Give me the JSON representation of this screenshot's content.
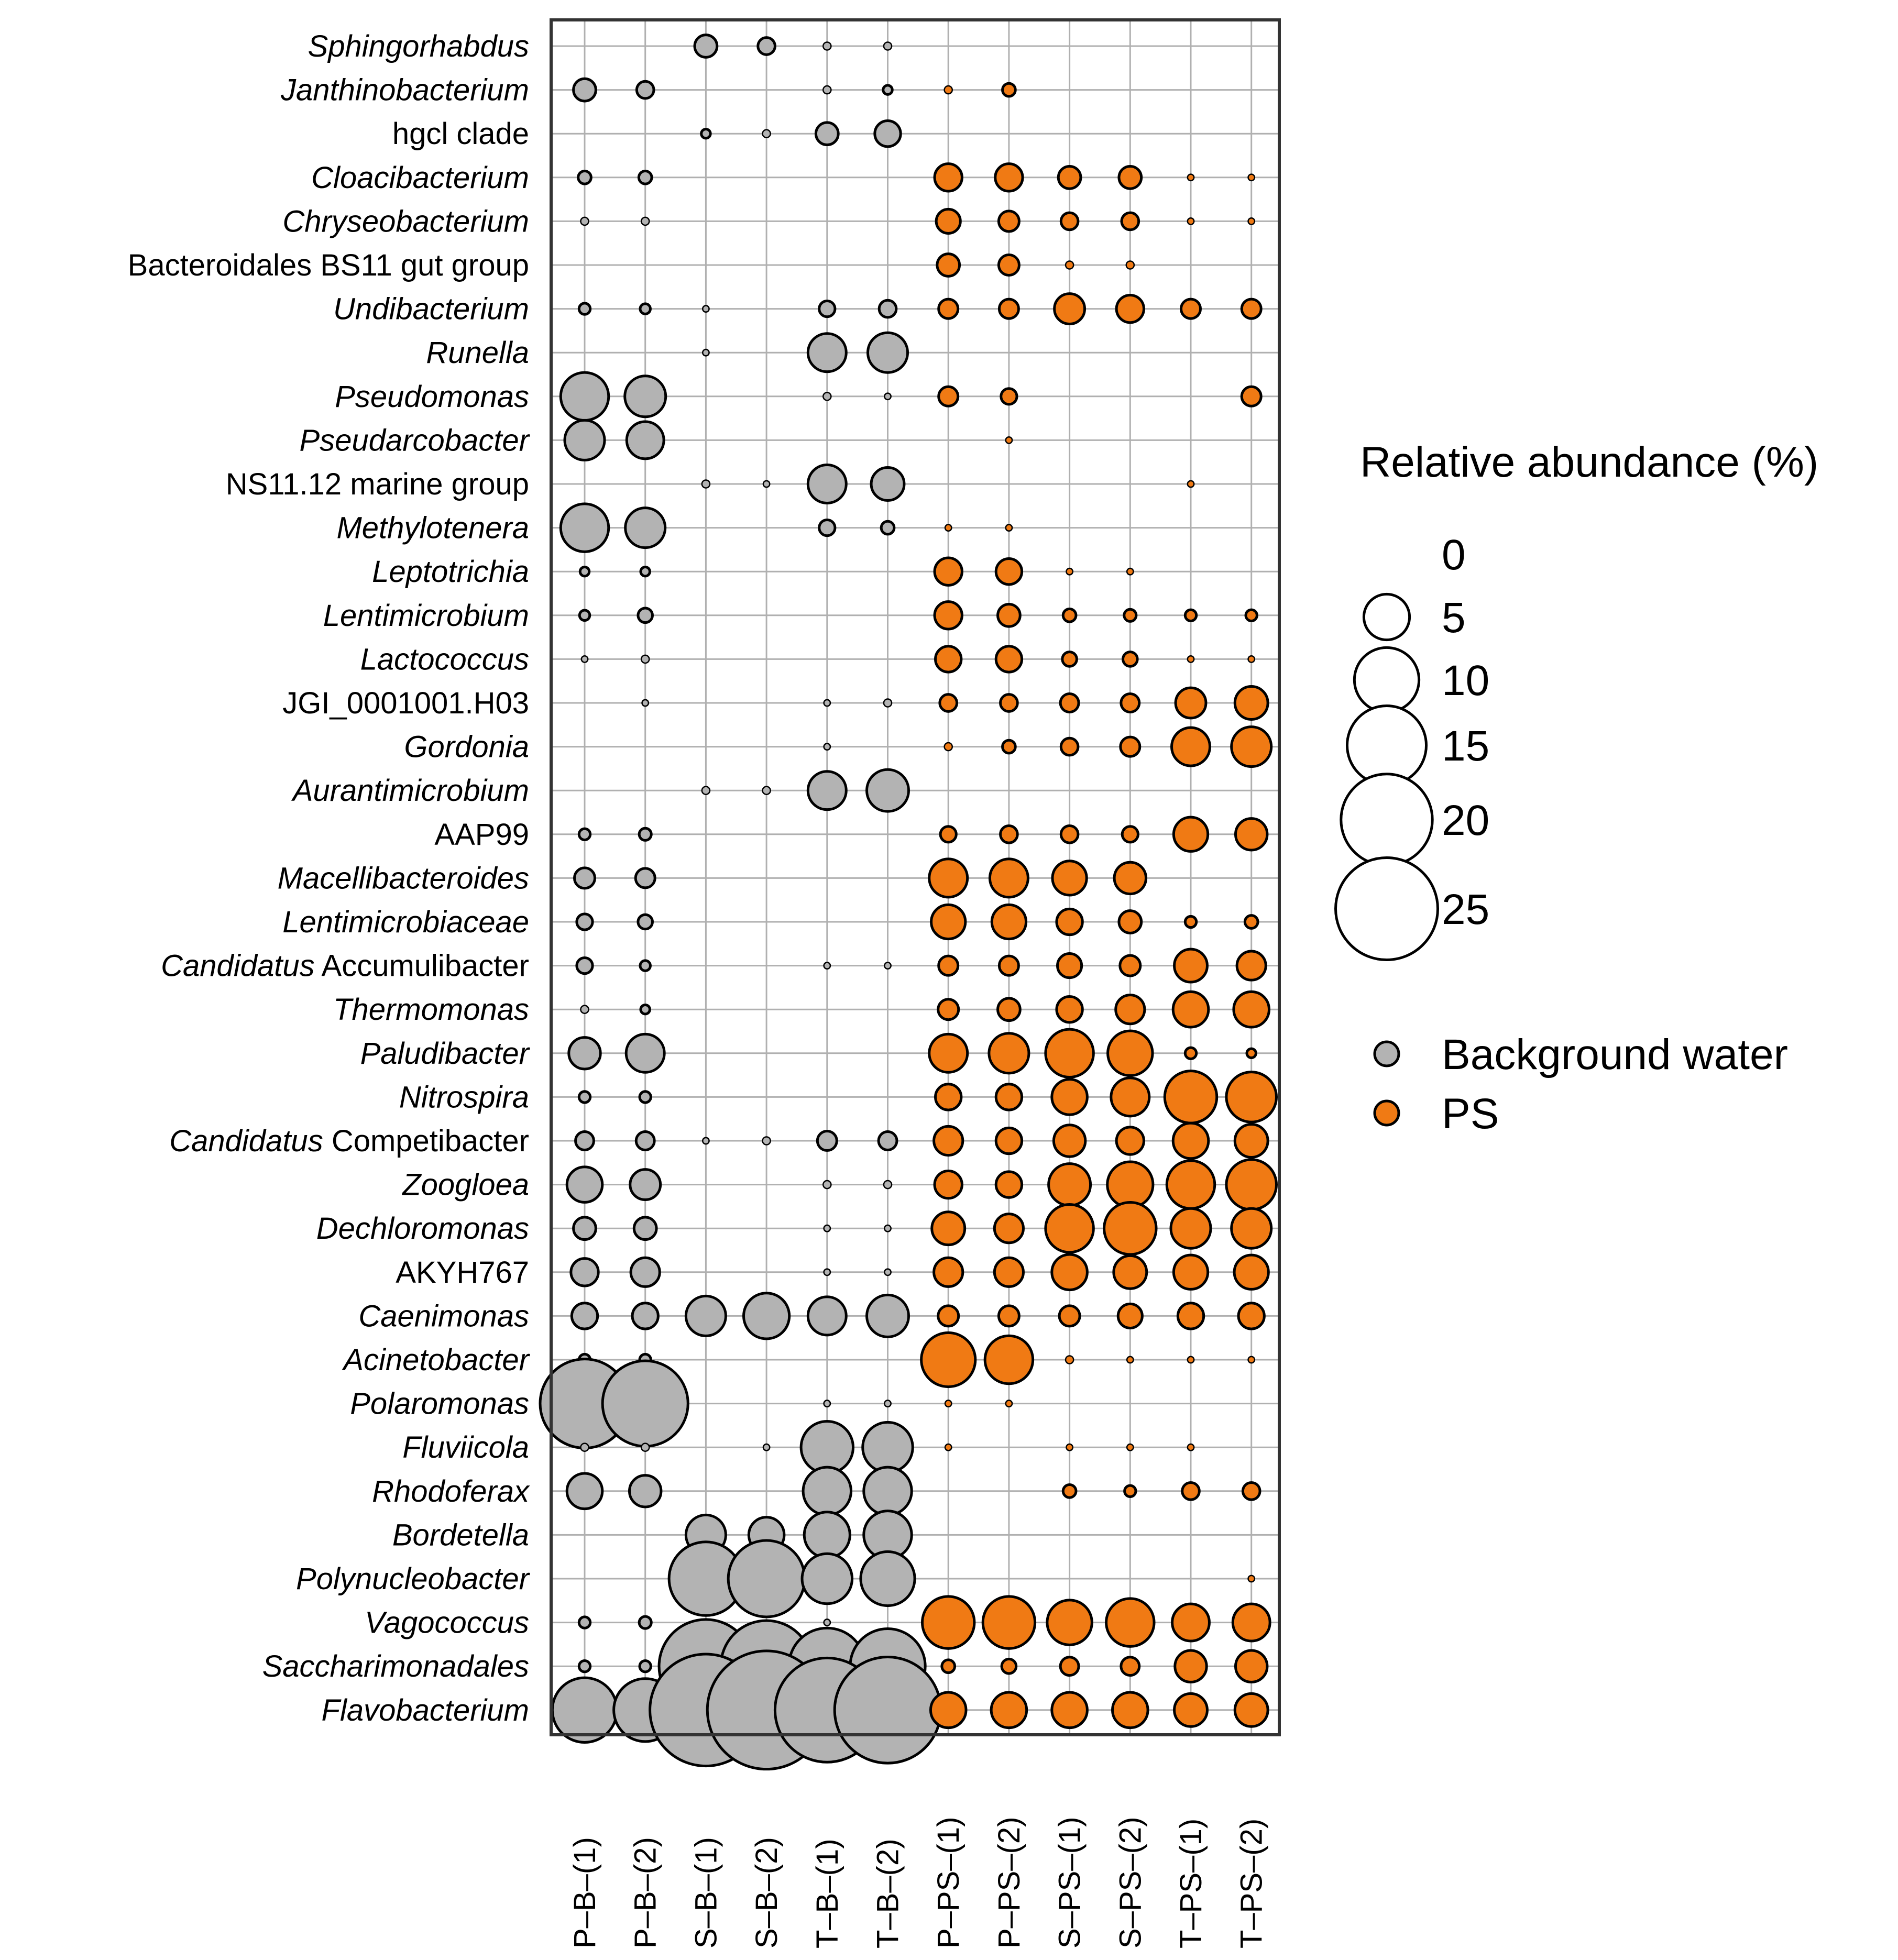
{
  "chart_data": {
    "type": "bubble",
    "title": "",
    "xlabel": "",
    "ylabel": "",
    "samples": [
      "P–B–(1)",
      "P–B–(2)",
      "S–B–(1)",
      "S–B–(2)",
      "T–B–(1)",
      "T–B–(2)",
      "P–PS–(1)",
      "P–PS–(2)",
      "S–PS–(1)",
      "S–PS–(2)",
      "T–PS–(1)",
      "T–PS–(2)"
    ],
    "sample_groups": [
      "Background water",
      "Background water",
      "Background water",
      "Background water",
      "Background water",
      "Background water",
      "PS",
      "PS",
      "PS",
      "PS",
      "PS",
      "PS"
    ],
    "taxa": [
      {
        "name": "Sphingorhabdus",
        "italic": true,
        "values": [
          0,
          0,
          1.2,
          0.7,
          0.15,
          0.15,
          0,
          0,
          0,
          0,
          0,
          0
        ]
      },
      {
        "name": "Janthinobacterium",
        "italic": true,
        "values": [
          1.2,
          0.7,
          0,
          0,
          0.15,
          0.2,
          0.15,
          0.4,
          0,
          0,
          0,
          0
        ]
      },
      {
        "name": "hgcl clade",
        "italic": false,
        "values": [
          0,
          0,
          0.2,
          0.15,
          1.2,
          1.6,
          0,
          0,
          0,
          0,
          0,
          0
        ]
      },
      {
        "name": "Cloacibacterium",
        "italic": true,
        "values": [
          0.4,
          0.4,
          0,
          0,
          0,
          0,
          1.8,
          1.8,
          1.2,
          1.2,
          0.1,
          0.1
        ]
      },
      {
        "name": "Chryseobacterium",
        "italic": true,
        "values": [
          0.15,
          0.15,
          0,
          0,
          0,
          0,
          1.4,
          1.0,
          0.7,
          0.7,
          0.1,
          0.1
        ]
      },
      {
        "name": "Bacteroidales BS11 gut group",
        "italic": false,
        "values": [
          0,
          0,
          0,
          0,
          0,
          0,
          1.2,
          1.0,
          0.15,
          0.15,
          0,
          0
        ]
      },
      {
        "name": "Undibacterium",
        "italic": true,
        "values": [
          0.3,
          0.25,
          0.1,
          0,
          0.6,
          0.7,
          0.9,
          0.9,
          2.2,
          1.8,
          0.9,
          0.9
        ]
      },
      {
        "name": "Runella",
        "italic": true,
        "values": [
          0,
          0,
          0.1,
          0,
          3.5,
          3.8,
          0,
          0,
          0,
          0,
          0,
          0
        ]
      },
      {
        "name": "Pseudomonas",
        "italic": true,
        "values": [
          5.5,
          4.0,
          0,
          0,
          0.15,
          0.1,
          0.9,
          0.6,
          0,
          0,
          0,
          0.9
        ]
      },
      {
        "name": "Pseudarcobacter",
        "italic": true,
        "values": [
          3.8,
          3.3,
          0,
          0,
          0,
          0,
          0,
          0.1,
          0,
          0,
          0,
          0
        ]
      },
      {
        "name": "NS11.12 marine group",
        "italic": false,
        "values": [
          0,
          0,
          0.15,
          0.1,
          3.5,
          2.6,
          0,
          0,
          0,
          0,
          0.1,
          0
        ]
      },
      {
        "name": "Methylotenera",
        "italic": true,
        "values": [
          5.5,
          3.8,
          0,
          0,
          0.6,
          0.4,
          0.1,
          0.1,
          0,
          0,
          0,
          0
        ]
      },
      {
        "name": "Leptotrichia",
        "italic": true,
        "values": [
          0.2,
          0.2,
          0,
          0,
          0,
          0,
          1.8,
          1.6,
          0.1,
          0.1,
          0,
          0
        ]
      },
      {
        "name": "Lentimicrobium",
        "italic": true,
        "values": [
          0.25,
          0.5,
          0,
          0,
          0,
          0,
          1.8,
          1.2,
          0.4,
          0.35,
          0.3,
          0.3
        ]
      },
      {
        "name": "Lactococcus",
        "italic": true,
        "values": [
          0.1,
          0.15,
          0,
          0,
          0,
          0,
          1.6,
          1.6,
          0.5,
          0.5,
          0.1,
          0.1
        ]
      },
      {
        "name": "JGI_0001001.H03",
        "italic": false,
        "values": [
          0,
          0.1,
          0,
          0,
          0.1,
          0.15,
          0.7,
          0.7,
          0.8,
          0.8,
          2.2,
          2.6
        ]
      },
      {
        "name": "Gordonia",
        "italic": true,
        "values": [
          0,
          0,
          0,
          0,
          0.1,
          0,
          0.15,
          0.4,
          0.7,
          0.9,
          3.5,
          3.8
        ]
      },
      {
        "name": "Aurantimicrobium",
        "italic": true,
        "values": [
          0,
          0,
          0.15,
          0.15,
          3.5,
          4.2,
          0,
          0,
          0,
          0,
          0,
          0
        ]
      },
      {
        "name": "AAP99",
        "italic": false,
        "values": [
          0.3,
          0.35,
          0,
          0,
          0,
          0,
          0.6,
          0.7,
          0.7,
          0.6,
          2.8,
          2.4
        ]
      },
      {
        "name": "Macellibacteroides",
        "italic": true,
        "values": [
          1.0,
          0.9,
          0,
          0,
          0,
          0,
          3.5,
          3.5,
          2.8,
          2.4,
          0,
          0
        ]
      },
      {
        "name": "Lentimicrobiaceae",
        "italic": true,
        "values": [
          0.6,
          0.5,
          0,
          0,
          0,
          0,
          2.8,
          2.8,
          1.6,
          1.2,
          0.3,
          0.4
        ]
      },
      {
        "name": "Candidatus Accumulibacter",
        "italic": true,
        "italic_prefix": "Candidatus",
        "suffix": " Accumulibacter",
        "values": [
          0.6,
          0.25,
          0,
          0,
          0.1,
          0.1,
          0.9,
          0.9,
          1.4,
          1.0,
          2.6,
          2.0
        ]
      },
      {
        "name": "Thermomonas",
        "italic": true,
        "values": [
          0.15,
          0.2,
          0,
          0,
          0,
          0,
          1.0,
          1.2,
          1.6,
          2.0,
          3.0,
          3.0
        ]
      },
      {
        "name": "Paludibacter",
        "italic": true,
        "values": [
          2.4,
          3.5,
          0,
          0,
          0,
          0,
          3.5,
          3.8,
          5.5,
          4.8,
          0.3,
          0.2
        ]
      },
      {
        "name": "Nitrospira",
        "italic": true,
        "values": [
          0.3,
          0.3,
          0,
          0,
          0,
          0,
          1.6,
          1.6,
          3.0,
          3.5,
          6.5,
          6.0
        ]
      },
      {
        "name": "Candidatus Competibacter",
        "italic": true,
        "italic_prefix": "Candidatus",
        "suffix": " Competibacter",
        "values": [
          0.8,
          0.8,
          0.1,
          0.15,
          0.9,
          0.8,
          2.0,
          1.6,
          2.4,
          1.8,
          3.0,
          2.6
        ]
      },
      {
        "name": "Zoogloea",
        "italic": true,
        "values": [
          3.0,
          2.2,
          0,
          0,
          0.15,
          0.15,
          1.8,
          1.6,
          4.2,
          5.0,
          5.5,
          6.0
        ]
      },
      {
        "name": "Dechloromonas",
        "italic": true,
        "values": [
          1.2,
          1.2,
          0,
          0,
          0.1,
          0.1,
          2.6,
          2.0,
          5.5,
          6.5,
          3.8,
          3.8
        ]
      },
      {
        "name": "AKYH767",
        "italic": false,
        "values": [
          1.8,
          2.0,
          0,
          0,
          0.1,
          0.1,
          2.0,
          2.0,
          3.0,
          2.6,
          2.8,
          2.8
        ]
      },
      {
        "name": "Caenimonas",
        "italic": true,
        "values": [
          1.6,
          1.6,
          3.8,
          5.0,
          3.5,
          4.2,
          1.0,
          1.0,
          1.0,
          1.4,
          1.6,
          1.6
        ]
      },
      {
        "name": "Acinetobacter",
        "italic": true,
        "values": [
          0.3,
          0.3,
          0,
          0,
          0,
          0,
          7.0,
          5.5,
          0.15,
          0.1,
          0.1,
          0.1
        ]
      },
      {
        "name": "Polaromonas",
        "italic": true,
        "values": [
          19.0,
          17.5,
          0,
          0,
          0.1,
          0.1,
          0.1,
          0.1,
          0,
          0,
          0,
          0
        ]
      },
      {
        "name": "Fluviicola",
        "italic": true,
        "values": [
          0.15,
          0.15,
          0,
          0.1,
          6.5,
          6.0,
          0.1,
          0,
          0.1,
          0.1,
          0.1,
          0
        ]
      },
      {
        "name": "Rhodoferax",
        "italic": true,
        "values": [
          3.0,
          2.4,
          0,
          0,
          5.5,
          5.5,
          0,
          0,
          0.4,
          0.3,
          0.7,
          0.7
        ]
      },
      {
        "name": "Bordetella",
        "italic": true,
        "values": [
          0,
          0,
          3.8,
          3.0,
          5.0,
          5.5,
          0,
          0,
          0,
          0,
          0,
          0
        ]
      },
      {
        "name": "Polynucleobacter",
        "italic": true,
        "values": [
          0,
          0,
          13.0,
          14.0,
          6.0,
          7.0,
          0,
          0,
          0,
          0,
          0,
          0.1
        ]
      },
      {
        "name": "Vagococcus",
        "italic": true,
        "values": [
          0.3,
          0.35,
          0,
          0,
          0.1,
          0,
          6.5,
          6.5,
          4.8,
          5.5,
          3.3,
          3.3
        ]
      },
      {
        "name": "Saccharimonadales",
        "italic": true,
        "values": [
          0.3,
          0.3,
          21.0,
          20.0,
          14.0,
          13.5,
          0.4,
          0.5,
          0.8,
          0.8,
          2.4,
          2.4
        ]
      },
      {
        "name": "Flavobacterium",
        "italic": true,
        "values": [
          10.0,
          9.5,
          30.0,
          33.5,
          26.0,
          27.0,
          3.0,
          3.0,
          3.0,
          3.0,
          2.6,
          2.6
        ]
      }
    ],
    "legend": {
      "size_title": "Relative abundance (%)",
      "size_levels": [
        0,
        5,
        10,
        15,
        20,
        25
      ],
      "size_labels": [
        "0",
        "5",
        "10",
        "15",
        "20",
        "25"
      ],
      "groups": [
        {
          "label": "Background water",
          "color": "#b3b3b3"
        },
        {
          "label": "PS",
          "color": "#f07a14"
        }
      ]
    }
  },
  "colors": {
    "background_water": "#b3b3b3",
    "ps": "#f07a14",
    "grid": "#b0b0b0",
    "frame": "#333333",
    "stroke": "#000000"
  }
}
